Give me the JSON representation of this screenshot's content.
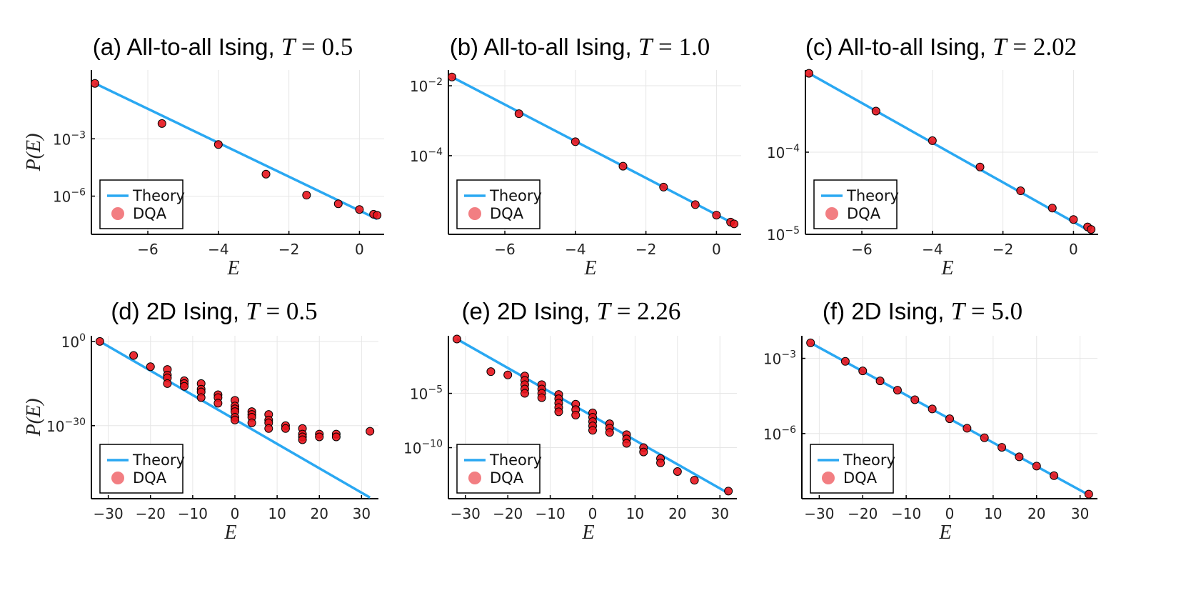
{
  "colors": {
    "theory": "#2aa8f2",
    "dqa": "#e8141c",
    "dqa_edge": "#000000",
    "grid": "#e6e6e6"
  },
  "chart_data": [
    {
      "type": "scatter",
      "title_prefix": "(a) All-to-all Ising, ",
      "title_T": "T",
      "title_value": " = 0.5",
      "xlabel": "E",
      "ylabel": "P(E)",
      "yscale": "log",
      "xlim": [
        -7.6,
        0.7
      ],
      "ylim_log10": [
        -8.0,
        0.6
      ],
      "xticks": [
        -6,
        -4,
        -2,
        0
      ],
      "xtick_labels": [
        "−6",
        "−4",
        "−2",
        "0"
      ],
      "yticks_log10": [
        -3,
        -6
      ],
      "ytick_labels": [
        {
          "base": "10",
          "exp": "−3"
        },
        {
          "base": "10",
          "exp": "−6"
        }
      ],
      "legend": {
        "position": "bottom-left",
        "items": [
          "Theory",
          "DQA"
        ]
      },
      "series": [
        {
          "name": "Theory",
          "kind": "line",
          "x": [
            -7.5,
            0.5
          ],
          "log10y": [
            -0.1,
            -7.2
          ]
        },
        {
          "name": "DQA",
          "kind": "points",
          "x": [
            -7.5,
            -5.6,
            -4.0,
            -2.65,
            -1.5,
            -0.6,
            0.0,
            0.4,
            0.5
          ],
          "log10y": [
            -0.1,
            -2.2,
            -3.3,
            -4.85,
            -5.95,
            -6.4,
            -6.7,
            -6.95,
            -7.0
          ]
        }
      ]
    },
    {
      "type": "scatter",
      "title_prefix": "(b) All-to-all Ising, ",
      "title_T": "T",
      "title_value": " = 1.0",
      "xlabel": "E",
      "ylabel": "",
      "yscale": "log",
      "xlim": [
        -7.6,
        0.7
      ],
      "ylim_log10": [
        -6.25,
        -1.55
      ],
      "xticks": [
        -6,
        -4,
        -2,
        0
      ],
      "xtick_labels": [
        "−6",
        "−4",
        "−2",
        "0"
      ],
      "yticks_log10": [
        -2,
        -4
      ],
      "ytick_labels": [
        {
          "base": "10",
          "exp": "−2"
        },
        {
          "base": "10",
          "exp": "−4"
        }
      ],
      "legend": {
        "position": "bottom-left",
        "items": [
          "Theory",
          "DQA"
        ]
      },
      "series": [
        {
          "name": "Theory",
          "kind": "line",
          "x": [
            -7.5,
            0.5
          ],
          "log10y": [
            -1.75,
            -5.95
          ]
        },
        {
          "name": "DQA",
          "kind": "points",
          "x": [
            -7.5,
            -5.6,
            -4.0,
            -2.65,
            -1.5,
            -0.6,
            0.0,
            0.4,
            0.5
          ],
          "log10y": [
            -1.75,
            -2.8,
            -3.6,
            -4.3,
            -4.9,
            -5.4,
            -5.7,
            -5.9,
            -5.95
          ]
        }
      ]
    },
    {
      "type": "scatter",
      "title_prefix": "(c) All-to-all Ising, ",
      "title_T": "T",
      "title_value": " = 2.02",
      "xlabel": "E",
      "ylabel": "",
      "yscale": "log",
      "xlim": [
        -7.6,
        0.7
      ],
      "ylim_log10": [
        -5.0,
        -3.0
      ],
      "xticks": [
        -6,
        -4,
        -2,
        0
      ],
      "xtick_labels": [
        "−6",
        "−4",
        "−2",
        "0"
      ],
      "yticks_log10": [
        -4,
        -5
      ],
      "ytick_labels": [
        {
          "base": "10",
          "exp": "−4"
        },
        {
          "base": "10",
          "exp": "−5"
        }
      ],
      "legend": {
        "position": "bottom-left",
        "items": [
          "Theory",
          "DQA"
        ]
      },
      "series": [
        {
          "name": "Theory",
          "kind": "line",
          "x": [
            -7.5,
            0.5
          ],
          "log10y": [
            -3.04,
            -4.97
          ]
        },
        {
          "name": "DQA",
          "kind": "points",
          "x": [
            -7.5,
            -5.6,
            -4.0,
            -2.65,
            -1.5,
            -0.6,
            0.0,
            0.4,
            0.5
          ],
          "log10y": [
            -3.04,
            -3.5,
            -3.86,
            -4.18,
            -4.47,
            -4.68,
            -4.82,
            -4.91,
            -4.94
          ]
        }
      ]
    },
    {
      "type": "scatter",
      "title_prefix": "(d) 2D Ising, ",
      "title_T": "T",
      "title_value": " = 0.5",
      "xlabel": "E",
      "ylabel": "P(E)",
      "yscale": "log",
      "xlim": [
        -34,
        34
      ],
      "ylim_log10": [
        -56,
        2
      ],
      "xticks": [
        -30,
        -20,
        -10,
        0,
        10,
        20,
        30
      ],
      "xtick_labels": [
        "−30",
        "−20",
        "−10",
        "0",
        "10",
        "20",
        "30"
      ],
      "yticks_log10": [
        0,
        -30
      ],
      "ytick_labels": [
        {
          "base": "10",
          "exp": "0"
        },
        {
          "base": "10",
          "exp": "−30"
        }
      ],
      "legend": {
        "position": "bottom-left",
        "items": [
          "Theory",
          "DQA"
        ]
      },
      "series": [
        {
          "name": "Theory",
          "kind": "line",
          "x": [
            -32,
            32
          ],
          "log10y": [
            0,
            -55.6
          ]
        },
        {
          "name": "DQA",
          "kind": "points",
          "x": [
            -32,
            -24,
            -20,
            -16,
            -16,
            -16,
            -16,
            -12,
            -12,
            -12,
            -8,
            -8,
            -8,
            -8,
            -4,
            -4,
            -4,
            0,
            0,
            0,
            0,
            0,
            0,
            4,
            4,
            4,
            4,
            8,
            8,
            8,
            8,
            12,
            12,
            16,
            16,
            16,
            16,
            20,
            20,
            24,
            24,
            32
          ],
          "log10y": [
            0,
            -5,
            -9,
            -10,
            -12,
            -13,
            -15,
            -14,
            -15,
            -16,
            -15,
            -17,
            -18,
            -20,
            -19,
            -20,
            -22,
            -21,
            -23,
            -24,
            -25,
            -27,
            -28,
            -25,
            -26,
            -27,
            -29,
            -26,
            -28,
            -29,
            -31,
            -30,
            -31,
            -31,
            -33,
            -34,
            -35,
            -33,
            -34,
            -33,
            -34,
            -32
          ]
        }
      ]
    },
    {
      "type": "scatter",
      "title_prefix": "(e) 2D Ising, ",
      "title_T": "T",
      "title_value": " = 2.26",
      "xlabel": "E",
      "ylabel": "",
      "yscale": "log",
      "xlim": [
        -34,
        34
      ],
      "ylim_log10": [
        -14.7,
        0.3
      ],
      "xticks": [
        -30,
        -20,
        -10,
        0,
        10,
        20,
        30
      ],
      "xtick_labels": [
        "−30",
        "−20",
        "−10",
        "0",
        "10",
        "20",
        "30"
      ],
      "yticks_log10": [
        -5,
        -10
      ],
      "ytick_labels": [
        {
          "base": "10",
          "exp": "−5"
        },
        {
          "base": "10",
          "exp": "−10"
        }
      ],
      "legend": {
        "position": "bottom-left",
        "items": [
          "Theory",
          "DQA"
        ]
      },
      "series": [
        {
          "name": "Theory",
          "kind": "line",
          "x": [
            -32,
            32
          ],
          "log10y": [
            0,
            -14.2
          ]
        },
        {
          "name": "DQA",
          "kind": "points",
          "x": [
            -32,
            -24,
            -20,
            -16,
            -16,
            -16,
            -16,
            -16,
            -12,
            -12,
            -12,
            -12,
            -8,
            -8,
            -8,
            -8,
            -8,
            -4,
            -4,
            -4,
            0,
            0,
            0,
            0,
            0,
            4,
            4,
            4,
            8,
            8,
            8,
            12,
            12,
            16,
            16,
            20,
            24,
            32
          ],
          "log10y": [
            0,
            -3.0,
            -3.3,
            -3.4,
            -3.8,
            -4.2,
            -4.6,
            -5.0,
            -4.2,
            -4.6,
            -5.0,
            -5.4,
            -5.1,
            -5.5,
            -5.9,
            -6.3,
            -6.7,
            -6.0,
            -6.5,
            -7.0,
            -6.8,
            -7.2,
            -7.6,
            -8.0,
            -8.4,
            -7.8,
            -8.2,
            -8.6,
            -8.8,
            -9.2,
            -9.6,
            -10.0,
            -10.4,
            -11.0,
            -11.4,
            -12.2,
            -13.0,
            -14.0
          ]
        }
      ]
    },
    {
      "type": "scatter",
      "title_prefix": "(f) 2D Ising, ",
      "title_T": "T",
      "title_value": " = 5.0",
      "xlabel": "E",
      "ylabel": "",
      "yscale": "log",
      "xlim": [
        -34,
        34
      ],
      "ylim_log10": [
        -8.6,
        -2.1
      ],
      "xticks": [
        -30,
        -20,
        -10,
        0,
        10,
        20,
        30
      ],
      "xtick_labels": [
        "−30",
        "−20",
        "−10",
        "0",
        "10",
        "20",
        "30"
      ],
      "yticks_log10": [
        -3,
        -6
      ],
      "ytick_labels": [
        {
          "base": "10",
          "exp": "−3"
        },
        {
          "base": "10",
          "exp": "−6"
        }
      ],
      "legend": {
        "position": "bottom-left",
        "items": [
          "Theory",
          "DQA"
        ]
      },
      "series": [
        {
          "name": "Theory",
          "kind": "line",
          "x": [
            -32,
            32
          ],
          "log10y": [
            -2.38,
            -8.45
          ]
        },
        {
          "name": "DQA",
          "kind": "points",
          "x": [
            -32,
            -24,
            -20,
            -16,
            -12,
            -8,
            -4,
            0,
            4,
            8,
            12,
            16,
            20,
            24,
            32
          ],
          "log10y": [
            -2.38,
            -3.12,
            -3.5,
            -3.9,
            -4.27,
            -4.65,
            -5.02,
            -5.41,
            -5.79,
            -6.17,
            -6.55,
            -6.93,
            -7.3,
            -7.68,
            -8.42
          ]
        }
      ]
    }
  ]
}
